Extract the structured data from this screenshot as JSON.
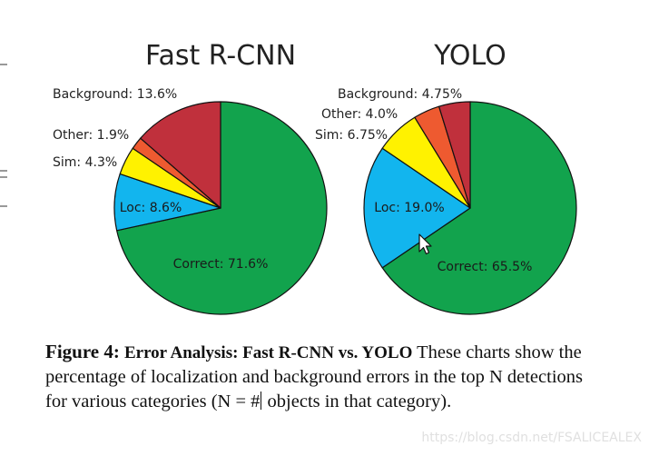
{
  "chart_data": [
    {
      "type": "pie",
      "title": "Fast R-CNN",
      "slices": [
        {
          "label": "Correct",
          "value": 71.6,
          "text": "Correct: 71.6%",
          "color": "#12a34d"
        },
        {
          "label": "Loc",
          "value": 8.6,
          "text": "Loc: 8.6%",
          "color": "#12b5ee"
        },
        {
          "label": "Sim",
          "value": 4.3,
          "text": "Sim: 4.3%",
          "color": "#fff200"
        },
        {
          "label": "Other",
          "value": 1.9,
          "text": "Other: 1.9%",
          "color": "#ee5a30"
        },
        {
          "label": "Background",
          "value": 13.6,
          "text": "Background: 13.6%",
          "color": "#c0303c"
        }
      ]
    },
    {
      "type": "pie",
      "title": "YOLO",
      "slices": [
        {
          "label": "Correct",
          "value": 65.5,
          "text": "Correct: 65.5%",
          "color": "#12a34d"
        },
        {
          "label": "Loc",
          "value": 19.0,
          "text": "Loc: 19.0%",
          "color": "#12b5ee"
        },
        {
          "label": "Sim",
          "value": 6.75,
          "text": "Sim: 6.75%",
          "color": "#fff200"
        },
        {
          "label": "Other",
          "value": 4.0,
          "text": "Other: 4.0%",
          "color": "#ee5a30"
        },
        {
          "label": "Background",
          "value": 4.75,
          "text": "Background: 4.75%",
          "color": "#c0303c"
        }
      ]
    }
  ],
  "caption": {
    "figure_label": "Figure 4:",
    "lead": "Error Analysis: Fast R-CNN vs. YOLO",
    "body_before_cursor": " These charts show the percentage of localization and background errors in the top N detections for various categories (N = #",
    "body_after_cursor": " objects in that category)."
  },
  "watermark": "https://blog.csdn.net/FSALICEALEX"
}
